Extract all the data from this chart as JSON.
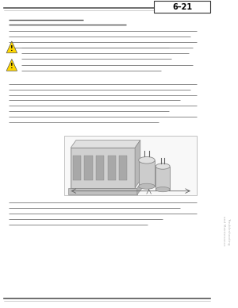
{
  "bg_color": "#ffffff",
  "page_bg": "#f0f0f0",
  "page_width": 3.0,
  "page_height": 3.88,
  "header_text": "6–21",
  "sidebar_text": "Troubleshooting\nand Maintenance",
  "warning_color": "#FFD700",
  "sidebar_bg": "#2a2a2a",
  "sidebar_text_color": "#cccccc",
  "tab_white_color": "#ffffff",
  "line_color": "#444444",
  "text_line_color": "#888888",
  "header_box_color": "#ffffff",
  "header_border_color": "#333333",
  "diagram_border": "#aaaaaa",
  "top_rule_color": "#555555",
  "bottom_rule_color": "#555555"
}
